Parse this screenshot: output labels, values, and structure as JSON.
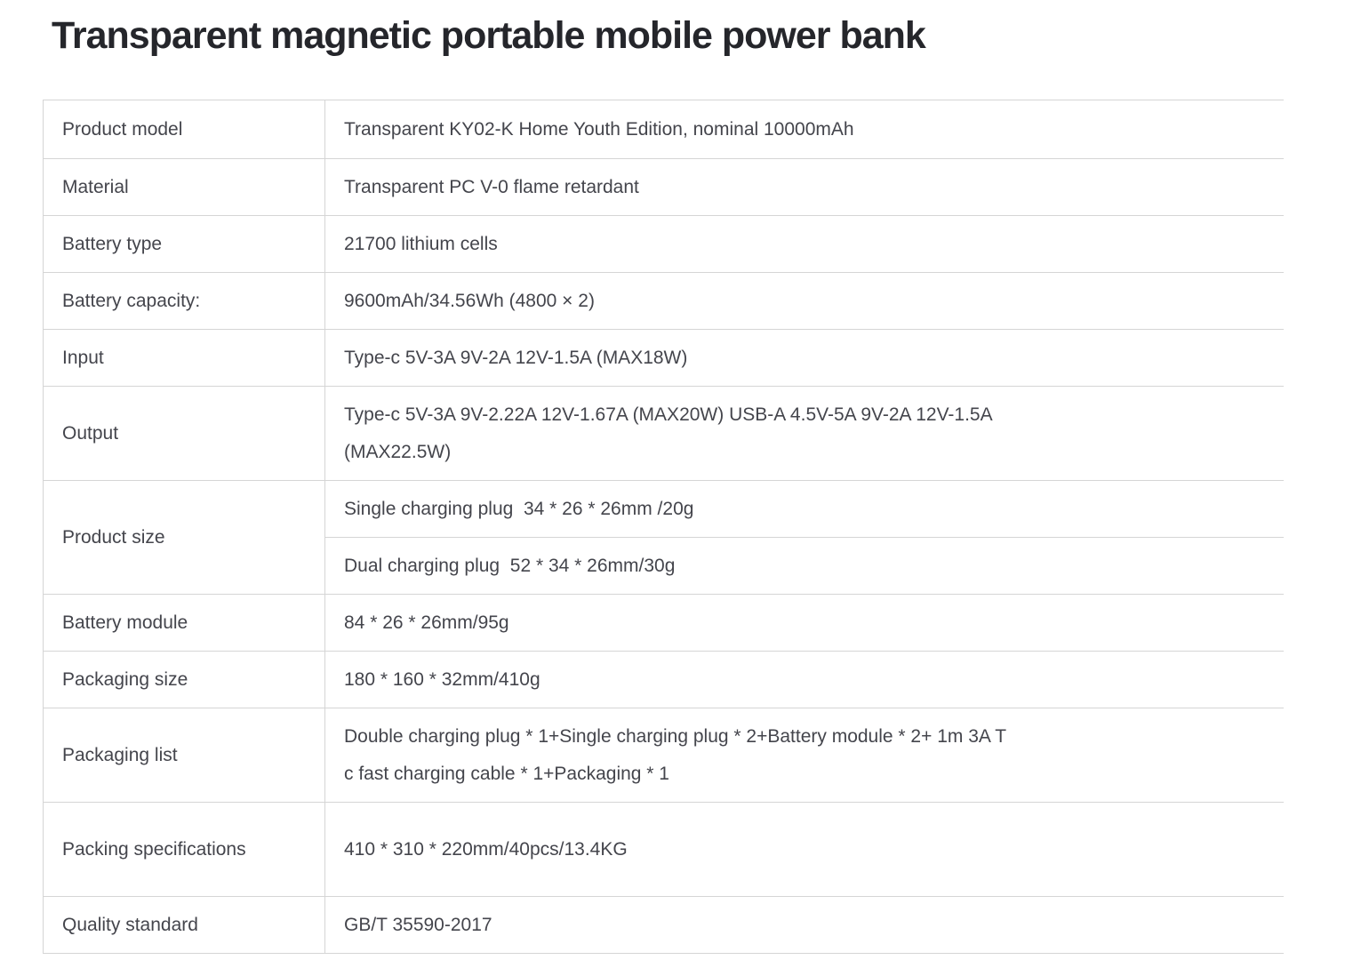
{
  "page": {
    "title": "Transparent magnetic portable mobile power bank"
  },
  "colors": {
    "title_text": "#25262b",
    "body_text": "#44454c",
    "table_border": "#d5d5d5",
    "sub_divider": "#e2e2e2",
    "background": "#ffffff"
  },
  "spec_table": {
    "rows": [
      {
        "label": "Product model",
        "value": "Transparent KY02-K Home Youth Edition, nominal 10000mAh"
      },
      {
        "label": "Material",
        "value": "Transparent PC V-0 flame retardant"
      },
      {
        "label": "Battery type",
        "value": "21700 lithium cells"
      },
      {
        "label": "Battery capacity:",
        "value": "9600mAh/34.56Wh (4800 × 2)"
      },
      {
        "label": "Input",
        "value": "Type-c 5V-3A 9V-2A 12V-1.5A (MAX18W)"
      },
      {
        "label": "Output",
        "value": "Type-c 5V-3A 9V-2.22A 12V-1.67A (MAX20W) USB-A 4.5V-5A 9V-2A 12V-1.5A\n(MAX22.5W)"
      },
      {
        "label": "Product size",
        "value": "Single charging plug  34 * 26 * 26mm /20g",
        "value2": "Dual charging plug  52 * 34 * 26mm/30g"
      },
      {
        "label": "Battery module",
        "value": "84 * 26 * 26mm/95g"
      },
      {
        "label": "Packaging size",
        "value": "180 * 160 * 32mm/410g"
      },
      {
        "label": "Packaging list",
        "value": "Double charging plug * 1+Single charging plug * 2+Battery module * 2+ 1m 3A T\nc fast charging cable * 1+Packaging * 1"
      },
      {
        "label": "Packing specifications",
        "value": "410 * 310 * 220mm/40pcs/13.4KG"
      },
      {
        "label": "Quality standard",
        "value": "GB/T 35590-2017"
      }
    ]
  }
}
